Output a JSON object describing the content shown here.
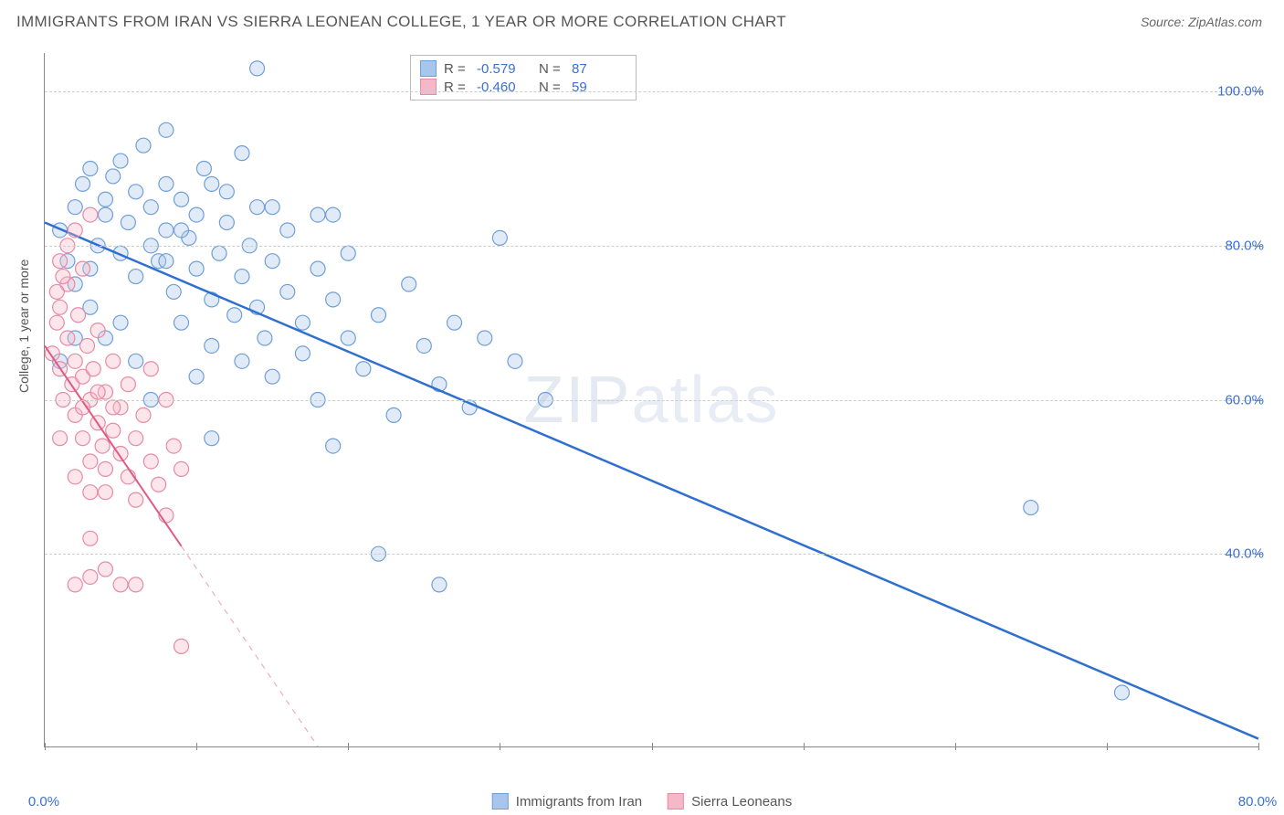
{
  "title": "IMMIGRANTS FROM IRAN VS SIERRA LEONEAN COLLEGE, 1 YEAR OR MORE CORRELATION CHART",
  "source": "Source: ZipAtlas.com",
  "watermark": {
    "pre": "ZIP",
    "post": "atlas"
  },
  "ylabel": "College, 1 year or more",
  "chart": {
    "type": "scatter",
    "x_domain": [
      0,
      80
    ],
    "y_domain": [
      15,
      105
    ],
    "x_ticks_major": [
      0,
      20,
      40,
      60,
      80
    ],
    "x_ticks_minor": [
      10,
      30,
      50,
      70
    ],
    "x_tick_labels": {
      "0": "0.0%",
      "80": "80.0%"
    },
    "y_ticks": [
      40,
      60,
      80,
      100
    ],
    "y_tick_labels": {
      "40": "40.0%",
      "60": "60.0%",
      "80": "80.0%",
      "100": "100.0%"
    },
    "grid_color": "#cccccc",
    "axis_color": "#888888",
    "background": "#ffffff",
    "marker_radius": 8,
    "series": [
      {
        "name": "Immigrants from Iran",
        "color_fill": "#a8c5ec",
        "color_stroke": "#6f9fd8",
        "trend": {
          "x1": 0,
          "y1": 83,
          "x2": 80,
          "y2": 16,
          "color": "#2f6fd0",
          "width": 2.5,
          "solid_until_x": 80
        },
        "R": "-0.579",
        "N": "87",
        "points": [
          [
            1,
            82
          ],
          [
            1.5,
            78
          ],
          [
            2,
            75
          ],
          [
            2,
            85
          ],
          [
            2.5,
            88
          ],
          [
            3,
            90
          ],
          [
            3,
            77
          ],
          [
            3.5,
            80
          ],
          [
            4,
            86
          ],
          [
            4,
            84
          ],
          [
            4.5,
            89
          ],
          [
            5,
            91
          ],
          [
            5,
            79
          ],
          [
            5.5,
            83
          ],
          [
            6,
            87
          ],
          [
            6,
            76
          ],
          [
            6.5,
            93
          ],
          [
            7,
            85
          ],
          [
            7,
            80
          ],
          [
            7.5,
            78
          ],
          [
            8,
            88
          ],
          [
            8,
            82
          ],
          [
            8.5,
            74
          ],
          [
            9,
            86
          ],
          [
            9,
            70
          ],
          [
            9.5,
            81
          ],
          [
            10,
            84
          ],
          [
            10,
            77
          ],
          [
            10.5,
            90
          ],
          [
            11,
            73
          ],
          [
            11,
            67
          ],
          [
            11.5,
            79
          ],
          [
            12,
            83
          ],
          [
            12,
            87
          ],
          [
            12.5,
            71
          ],
          [
            13,
            76
          ],
          [
            13,
            65
          ],
          [
            13.5,
            80
          ],
          [
            14,
            72
          ],
          [
            14,
            85
          ],
          [
            14.5,
            68
          ],
          [
            15,
            78
          ],
          [
            15,
            63
          ],
          [
            16,
            74
          ],
          [
            16,
            82
          ],
          [
            17,
            70
          ],
          [
            17,
            66
          ],
          [
            18,
            77
          ],
          [
            18,
            60
          ],
          [
            19,
            73
          ],
          [
            19,
            54
          ],
          [
            20,
            68
          ],
          [
            20,
            79
          ],
          [
            21,
            64
          ],
          [
            22,
            71
          ],
          [
            23,
            58
          ],
          [
            24,
            75
          ],
          [
            25,
            67
          ],
          [
            26,
            62
          ],
          [
            27,
            70
          ],
          [
            28,
            59
          ],
          [
            29,
            68
          ],
          [
            30,
            81
          ],
          [
            31,
            65
          ],
          [
            33,
            60
          ],
          [
            22,
            40
          ],
          [
            26,
            36
          ],
          [
            14,
            103
          ],
          [
            8,
            95
          ],
          [
            10,
            63
          ],
          [
            11,
            55
          ],
          [
            7,
            60
          ],
          [
            6,
            65
          ],
          [
            5,
            70
          ],
          [
            4,
            68
          ],
          [
            3,
            72
          ],
          [
            2,
            68
          ],
          [
            1,
            65
          ],
          [
            15,
            85
          ],
          [
            18,
            84
          ],
          [
            71,
            22
          ],
          [
            65,
            46
          ],
          [
            19,
            84
          ],
          [
            13,
            92
          ],
          [
            11,
            88
          ],
          [
            9,
            82
          ],
          [
            8,
            78
          ]
        ]
      },
      {
        "name": "Sierra Leoneans",
        "color_fill": "#f5b8c8",
        "color_stroke": "#e78aa4",
        "trend": {
          "x1": 0,
          "y1": 67,
          "x2": 18,
          "y2": 15,
          "color": "#e05a86",
          "width": 2,
          "solid_until_x": 9
        },
        "R": "-0.460",
        "N": "59",
        "points": [
          [
            0.5,
            66
          ],
          [
            0.8,
            70
          ],
          [
            1,
            64
          ],
          [
            1,
            72
          ],
          [
            1.2,
            60
          ],
          [
            1.5,
            68
          ],
          [
            1.5,
            75
          ],
          [
            1.8,
            62
          ],
          [
            2,
            65
          ],
          [
            2,
            58
          ],
          [
            2.2,
            71
          ],
          [
            2.5,
            63
          ],
          [
            2.5,
            55
          ],
          [
            2.8,
            67
          ],
          [
            3,
            60
          ],
          [
            3,
            52
          ],
          [
            3.2,
            64
          ],
          [
            3.5,
            57
          ],
          [
            3.5,
            69
          ],
          [
            3.8,
            54
          ],
          [
            4,
            61
          ],
          [
            4,
            48
          ],
          [
            4.5,
            56
          ],
          [
            4.5,
            65
          ],
          [
            5,
            53
          ],
          [
            5,
            59
          ],
          [
            5.5,
            50
          ],
          [
            5.5,
            62
          ],
          [
            6,
            55
          ],
          [
            6,
            47
          ],
          [
            6.5,
            58
          ],
          [
            7,
            52
          ],
          [
            7,
            64
          ],
          [
            7.5,
            49
          ],
          [
            8,
            60
          ],
          [
            8,
            45
          ],
          [
            8.5,
            54
          ],
          [
            9,
            51
          ],
          [
            1,
            78
          ],
          [
            1.5,
            80
          ],
          [
            2,
            82
          ],
          [
            2.5,
            77
          ],
          [
            3,
            84
          ],
          [
            0.8,
            74
          ],
          [
            1.2,
            76
          ],
          [
            3,
            42
          ],
          [
            4,
            38
          ],
          [
            5,
            36
          ],
          [
            2,
            36
          ],
          [
            3,
            37
          ],
          [
            6,
            36
          ],
          [
            9,
            28
          ],
          [
            1,
            55
          ],
          [
            2,
            50
          ],
          [
            3,
            48
          ],
          [
            4,
            51
          ],
          [
            2.5,
            59
          ],
          [
            3.5,
            61
          ],
          [
            4.5,
            59
          ]
        ]
      }
    ]
  },
  "legend_top_labels": {
    "R": "R  =",
    "N": "N  ="
  },
  "legend_bottom": [
    {
      "swatch_fill": "#a8c5ec",
      "swatch_stroke": "#6f9fd8",
      "label": "Immigrants from Iran"
    },
    {
      "swatch_fill": "#f5b8c8",
      "swatch_stroke": "#e78aa4",
      "label": "Sierra Leoneans"
    }
  ]
}
